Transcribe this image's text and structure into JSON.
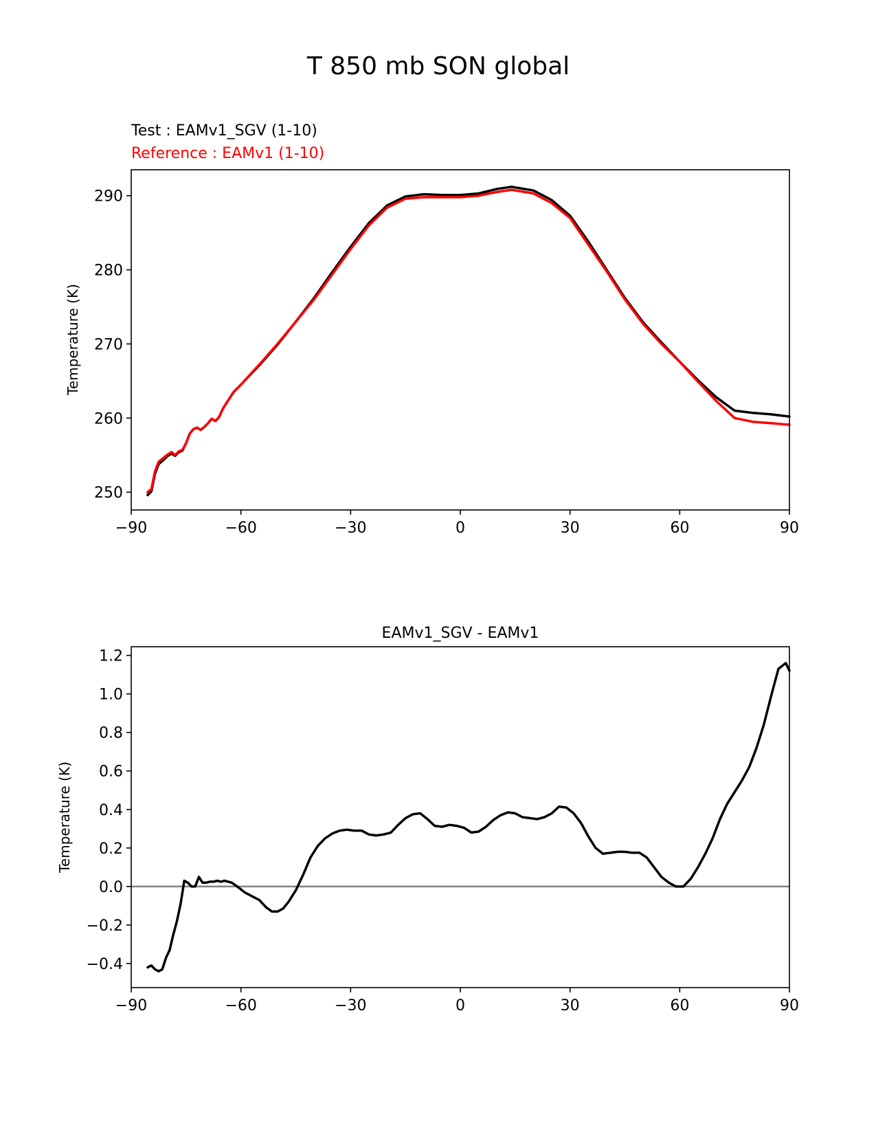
{
  "figure": {
    "title": "T 850 mb SON global"
  },
  "colors": {
    "test": "#000000",
    "reference": "#ff0000",
    "zero_line": "#808080",
    "axes": "#000000"
  },
  "chart_data": [
    {
      "type": "line",
      "title": "",
      "legend_lines": [
        {
          "text": "Test : EAMv1_SGV (1-10)",
          "color": "#000000"
        },
        {
          "text": "Reference : EAMv1 (1-10)",
          "color": "#ff0000"
        }
      ],
      "xlabel": "",
      "ylabel": "Temperature (K)",
      "xlim": [
        -90,
        90
      ],
      "ylim": [
        247.6,
        293.5
      ],
      "xticks": [
        -90,
        -60,
        -30,
        0,
        30,
        60,
        90
      ],
      "xtick_labels": [
        "−90",
        "−60",
        "−30",
        "0",
        "30",
        "60",
        "90"
      ],
      "yticks": [
        250,
        260,
        270,
        280,
        290
      ],
      "ytick_labels": [
        "250",
        "260",
        "270",
        "280",
        "290"
      ],
      "series": [
        {
          "name": "Test : EAMv1_SGV (1-10)",
          "color": "#000000",
          "x": [
            -85.5,
            -84.5,
            -83.5,
            -82.5,
            -81.5,
            -80,
            -79,
            -78,
            -77,
            -76,
            -75,
            -74,
            -73,
            -72,
            -71,
            -70,
            -69,
            -68,
            -67,
            -66,
            -65,
            -64,
            -62,
            -60,
            -55,
            -50,
            -45,
            -40,
            -35,
            -30,
            -25,
            -20,
            -15,
            -10,
            -5,
            0,
            5,
            10,
            14,
            20,
            25,
            30,
            35,
            40,
            45,
            50,
            55,
            60,
            65,
            70,
            75,
            80,
            85,
            90
          ],
          "y": [
            249.6,
            250.1,
            252.5,
            253.8,
            254.2,
            254.9,
            255.2,
            254.9,
            255.4,
            255.6,
            256.6,
            257.9,
            258.5,
            258.7,
            258.4,
            258.8,
            259.3,
            259.9,
            259.6,
            260.1,
            261.2,
            262.0,
            263.5,
            264.5,
            267.1,
            269.9,
            273.0,
            276.2,
            279.7,
            283.1,
            286.3,
            288.7,
            289.9,
            290.2,
            290.1,
            290.1,
            290.3,
            290.9,
            291.2,
            290.7,
            289.4,
            287.3,
            283.8,
            280.0,
            276.2,
            272.9,
            270.2,
            267.6,
            265.1,
            262.8,
            261.0,
            260.7,
            260.5,
            260.2
          ]
        },
        {
          "name": "Reference : EAMv1 (1-10)",
          "color": "#ff0000",
          "x": [
            -85.5,
            -84.5,
            -83.5,
            -82.5,
            -81.5,
            -80,
            -79,
            -78,
            -77,
            -76,
            -75,
            -74,
            -73,
            -72,
            -71,
            -70,
            -69,
            -68,
            -67,
            -66,
            -65,
            -64,
            -62,
            -60,
            -55,
            -50,
            -45,
            -40,
            -35,
            -30,
            -25,
            -20,
            -15,
            -10,
            -5,
            0,
            5,
            10,
            14,
            20,
            25,
            30,
            35,
            40,
            45,
            50,
            55,
            60,
            65,
            70,
            75,
            80,
            85,
            90
          ],
          "y": [
            250.0,
            250.4,
            252.8,
            254.1,
            254.5,
            255.1,
            255.4,
            255.0,
            255.5,
            255.7,
            256.6,
            257.9,
            258.5,
            258.7,
            258.4,
            258.8,
            259.3,
            259.9,
            259.6,
            260.1,
            261.2,
            262.0,
            263.5,
            264.5,
            267.2,
            270.0,
            273.0,
            276.0,
            279.4,
            282.8,
            286.0,
            288.4,
            289.6,
            289.8,
            289.8,
            289.8,
            290.0,
            290.5,
            290.8,
            290.3,
            289.0,
            287.0,
            283.4,
            279.8,
            276.0,
            272.7,
            270.0,
            267.6,
            264.9,
            262.3,
            260.0,
            259.5,
            259.3,
            259.1
          ]
        }
      ]
    },
    {
      "type": "line",
      "title": "EAMv1_SGV - EAMv1",
      "xlabel": "",
      "ylabel": "Temperature (K)",
      "xlim": [
        -90,
        90
      ],
      "ylim": [
        -0.525,
        1.245
      ],
      "xticks": [
        -90,
        -60,
        -30,
        0,
        30,
        60,
        90
      ],
      "xtick_labels": [
        "−90",
        "−60",
        "−30",
        "0",
        "30",
        "60",
        "90"
      ],
      "yticks": [
        -0.4,
        -0.2,
        0.0,
        0.2,
        0.4,
        0.6,
        0.8,
        1.0,
        1.2
      ],
      "ytick_labels": [
        "−0.4",
        "−0.2",
        "0.0",
        "0.2",
        "0.4",
        "0.6",
        "0.8",
        "1.0",
        "1.2"
      ],
      "zero_line": 0.0,
      "series": [
        {
          "name": "EAMv1_SGV - EAMv1",
          "color": "#000000",
          "x": [
            -85.5,
            -84.5,
            -83.5,
            -82.5,
            -81.5,
            -80.5,
            -79.5,
            -78.5,
            -77.5,
            -76.5,
            -75.5,
            -74.5,
            -73.5,
            -72.5,
            -71.5,
            -70.5,
            -69.5,
            -68.5,
            -67.5,
            -66.5,
            -65.5,
            -64.5,
            -62.5,
            -61,
            -59,
            -57,
            -55,
            -53,
            -51.5,
            -50,
            -48.5,
            -47,
            -45,
            -43,
            -41,
            -39,
            -37,
            -35,
            -33,
            -31,
            -29,
            -27,
            -25,
            -23,
            -21,
            -19,
            -17,
            -15,
            -13,
            -11,
            -9,
            -7,
            -5,
            -3,
            -1,
            1,
            3,
            5,
            7,
            9,
            11,
            13,
            15,
            17,
            19,
            21,
            23,
            25,
            27,
            29,
            31,
            33,
            35,
            37,
            39,
            41,
            43,
            45,
            47,
            49,
            51,
            53,
            55,
            57,
            59,
            61,
            63,
            65,
            67,
            69,
            71,
            73,
            75,
            77,
            79,
            81,
            83,
            85,
            87,
            89,
            90
          ],
          "y": [
            -0.42,
            -0.41,
            -0.43,
            -0.44,
            -0.43,
            -0.37,
            -0.33,
            -0.25,
            -0.18,
            -0.09,
            0.03,
            0.02,
            0.0,
            0.0,
            0.05,
            0.02,
            0.02,
            0.025,
            0.025,
            0.03,
            0.025,
            0.03,
            0.02,
            0.0,
            -0.03,
            -0.05,
            -0.07,
            -0.11,
            -0.13,
            -0.13,
            -0.115,
            -0.08,
            -0.02,
            0.06,
            0.15,
            0.21,
            0.25,
            0.275,
            0.29,
            0.295,
            0.29,
            0.29,
            0.27,
            0.265,
            0.27,
            0.28,
            0.32,
            0.355,
            0.375,
            0.38,
            0.35,
            0.315,
            0.31,
            0.32,
            0.315,
            0.305,
            0.28,
            0.285,
            0.31,
            0.345,
            0.37,
            0.385,
            0.38,
            0.36,
            0.355,
            0.35,
            0.36,
            0.38,
            0.415,
            0.41,
            0.38,
            0.33,
            0.26,
            0.2,
            0.17,
            0.175,
            0.18,
            0.18,
            0.175,
            0.175,
            0.15,
            0.1,
            0.05,
            0.02,
            0.0,
            0.0,
            0.04,
            0.1,
            0.17,
            0.25,
            0.35,
            0.43,
            0.49,
            0.55,
            0.62,
            0.72,
            0.84,
            0.99,
            1.13,
            1.16,
            1.12
          ]
        }
      ]
    }
  ]
}
